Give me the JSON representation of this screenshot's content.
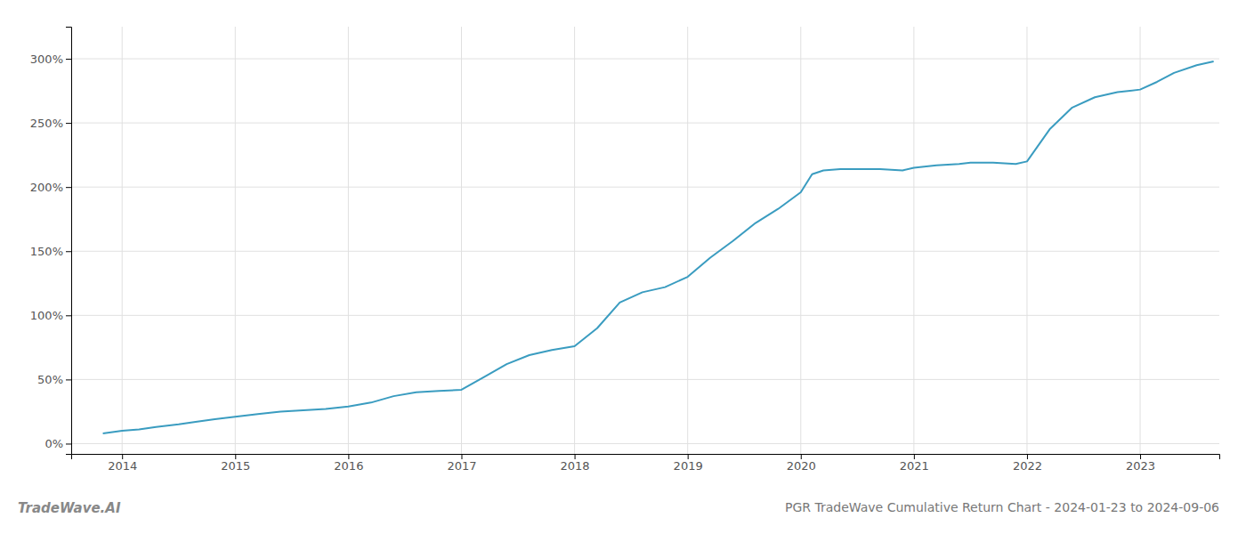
{
  "chart_data": {
    "type": "line",
    "title": "PGR TradeWave Cumulative Return Chart - 2024-01-23 to 2024-09-06",
    "annotations": [
      "TradeWave.AI"
    ],
    "color": "#3a9cc0",
    "grid": true,
    "x": [
      2013.83,
      2014.0,
      2014.15,
      2014.3,
      2014.5,
      2014.65,
      2014.82,
      2015.0,
      2015.2,
      2015.4,
      2015.6,
      2015.8,
      2016.0,
      2016.2,
      2016.4,
      2016.6,
      2016.8,
      2017.0,
      2017.2,
      2017.4,
      2017.6,
      2017.8,
      2018.0,
      2018.2,
      2018.4,
      2018.6,
      2018.8,
      2019.0,
      2019.2,
      2019.4,
      2019.6,
      2019.8,
      2020.0,
      2020.1,
      2020.2,
      2020.35,
      2020.5,
      2020.7,
      2020.9,
      2021.0,
      2021.2,
      2021.4,
      2021.5,
      2021.7,
      2021.9,
      2022.0,
      2022.2,
      2022.4,
      2022.6,
      2022.8,
      2023.0,
      2023.15,
      2023.3,
      2023.5,
      2023.65
    ],
    "values": [
      8,
      10,
      11,
      13,
      15,
      17,
      19,
      21,
      23,
      25,
      26,
      27,
      29,
      32,
      37,
      40,
      41,
      42,
      52,
      62,
      69,
      73,
      76,
      90,
      110,
      118,
      122,
      130,
      145,
      158,
      172,
      183,
      196,
      210,
      213,
      214,
      214,
      214,
      213,
      215,
      217,
      218,
      219,
      219,
      218,
      220,
      245,
      262,
      270,
      274,
      276,
      282,
      289,
      295,
      298
    ],
    "xlim": [
      2013.55,
      2023.7
    ],
    "ylim": [
      -8,
      325
    ],
    "xticks": [
      2014,
      2015,
      2016,
      2017,
      2018,
      2019,
      2020,
      2021,
      2022,
      2023
    ],
    "yticks": [
      {
        "value": 0,
        "label": "0%"
      },
      {
        "value": 50,
        "label": "50%"
      },
      {
        "value": 100,
        "label": "100%"
      },
      {
        "value": 150,
        "label": "150%"
      },
      {
        "value": 200,
        "label": "200%"
      },
      {
        "value": 250,
        "label": "250%"
      },
      {
        "value": 300,
        "label": "300%"
      }
    ]
  }
}
